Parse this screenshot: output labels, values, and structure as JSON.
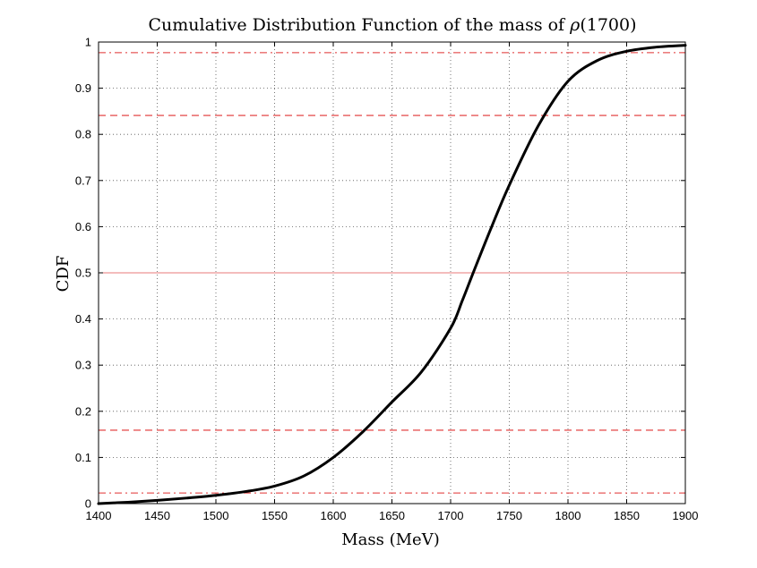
{
  "chart_data": {
    "type": "line",
    "title_prefix": "Cumulative Distribution Function of the mass of ",
    "title_symbol": "ρ",
    "title_suffix": "(1700)",
    "xlabel": "Mass (MeV)",
    "ylabel": "CDF",
    "xlim": [
      1400,
      1900
    ],
    "ylim": [
      0,
      1
    ],
    "xticks": [
      1400,
      1450,
      1500,
      1550,
      1600,
      1650,
      1700,
      1750,
      1800,
      1850,
      1900
    ],
    "yticks": [
      0,
      0.1,
      0.2,
      0.3,
      0.4,
      0.5,
      0.6,
      0.7,
      0.8,
      0.9,
      1
    ],
    "ytick_labels": [
      "0",
      "0.1",
      "0.2",
      "0.3",
      "0.4",
      "0.5",
      "0.6",
      "0.7",
      "0.8",
      "0.9",
      "1"
    ],
    "grid": true,
    "series": [
      {
        "name": "CDF",
        "color": "#000000",
        "x": [
          1400,
          1425,
          1450,
          1475,
          1500,
          1525,
          1550,
          1575,
          1600,
          1625,
          1650,
          1675,
          1700,
          1710,
          1720,
          1735,
          1750,
          1775,
          1800,
          1825,
          1850,
          1875,
          1900
        ],
        "y": [
          0.0,
          0.003,
          0.007,
          0.012,
          0.018,
          0.026,
          0.038,
          0.06,
          0.1,
          0.155,
          0.22,
          0.285,
          0.38,
          0.44,
          0.505,
          0.6,
          0.69,
          0.82,
          0.915,
          0.96,
          0.98,
          0.989,
          0.993
        ]
      }
    ],
    "reference_lines": [
      {
        "name": "upper-2sigma-line",
        "y": 0.977,
        "style": "dashdot",
        "color": "#e03030"
      },
      {
        "name": "upper-1sigma-line",
        "y": 0.841,
        "style": "dashed",
        "color": "#e03030"
      },
      {
        "name": "median-line",
        "y": 0.5,
        "style": "solid",
        "color": "#e87878"
      },
      {
        "name": "lower-1sigma-line",
        "y": 0.159,
        "style": "dashed",
        "color": "#e03030"
      },
      {
        "name": "lower-2sigma-line",
        "y": 0.023,
        "style": "dashdot",
        "color": "#e03030"
      }
    ]
  }
}
